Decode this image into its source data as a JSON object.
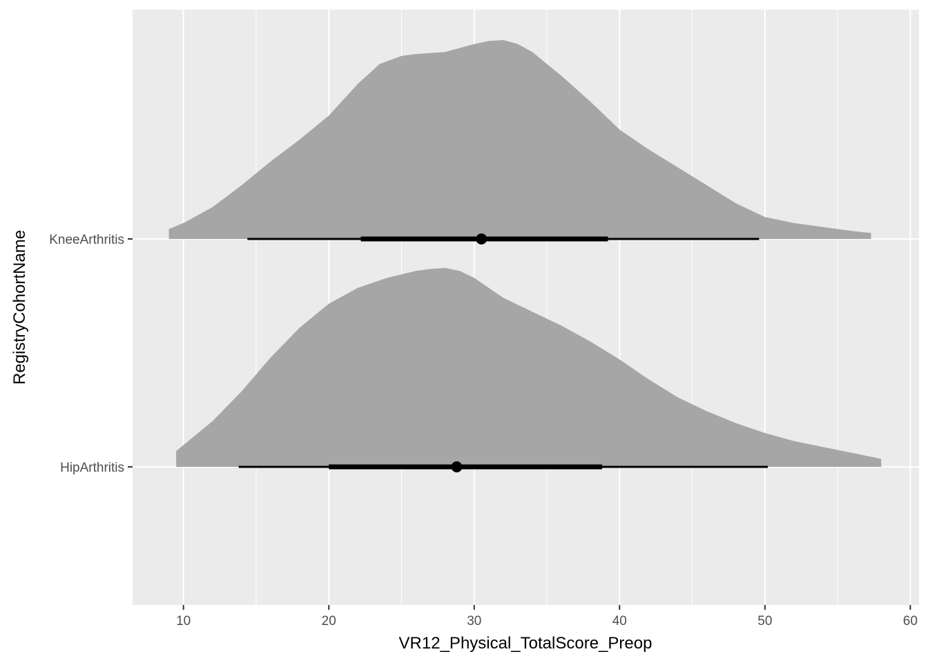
{
  "chart_data": {
    "type": "halfeye",
    "title": "",
    "xlabel": "VR12_Physical_TotalScore_Preop",
    "ylabel": "RegistryCohortName",
    "xlim": [
      6.5,
      60.6
    ],
    "x_ticks": [
      10,
      20,
      30,
      40,
      50,
      60
    ],
    "grid": true,
    "colors": {
      "panel_background": "#ebebeb",
      "grid": "#ffffff",
      "density_fill": "#a6a6a6",
      "interval": "#000000"
    },
    "categories": [
      "HipArthritis",
      "KneeArthritis"
    ],
    "series": [
      {
        "category": "HipArthritis",
        "point": 28.8,
        "interval_66": [
          20.0,
          38.8
        ],
        "interval_95": [
          13.8,
          50.2
        ],
        "density": {
          "x": [
            9.5,
            10.5,
            12.0,
            14.0,
            16.0,
            18.0,
            20.0,
            22.0,
            24.0,
            26.0,
            27.0,
            28.0,
            29.0,
            30.0,
            31.0,
            32.0,
            34.0,
            36.0,
            38.0,
            40.0,
            42.0,
            44.0,
            46.0,
            48.0,
            50.0,
            52.0,
            54.0,
            56.0,
            58.0
          ],
          "y": [
            0.08,
            0.14,
            0.23,
            0.38,
            0.55,
            0.7,
            0.82,
            0.9,
            0.95,
            0.985,
            0.995,
            1.0,
            0.985,
            0.95,
            0.9,
            0.85,
            0.78,
            0.71,
            0.63,
            0.54,
            0.44,
            0.35,
            0.28,
            0.22,
            0.17,
            0.13,
            0.1,
            0.07,
            0.04
          ]
        }
      },
      {
        "category": "KneeArthritis",
        "point": 30.5,
        "interval_66": [
          22.2,
          39.2
        ],
        "interval_95": [
          14.4,
          49.6
        ],
        "density": {
          "x": [
            9.0,
            10.0,
            12.0,
            14.0,
            16.0,
            18.0,
            20.0,
            22.0,
            23.5,
            25.0,
            26.0,
            27.0,
            28.0,
            29.0,
            30.0,
            31.0,
            32.0,
            33.0,
            34.0,
            35.0,
            36.0,
            38.0,
            40.0,
            42.0,
            44.0,
            46.0,
            48.0,
            50.0,
            52.0,
            54.0,
            56.0,
            57.3
          ],
          "y": [
            0.05,
            0.08,
            0.16,
            0.27,
            0.39,
            0.5,
            0.62,
            0.78,
            0.88,
            0.92,
            0.93,
            0.935,
            0.94,
            0.96,
            0.98,
            0.995,
            1.0,
            0.98,
            0.94,
            0.88,
            0.82,
            0.69,
            0.55,
            0.45,
            0.36,
            0.27,
            0.18,
            0.11,
            0.08,
            0.06,
            0.04,
            0.03
          ]
        }
      }
    ]
  }
}
